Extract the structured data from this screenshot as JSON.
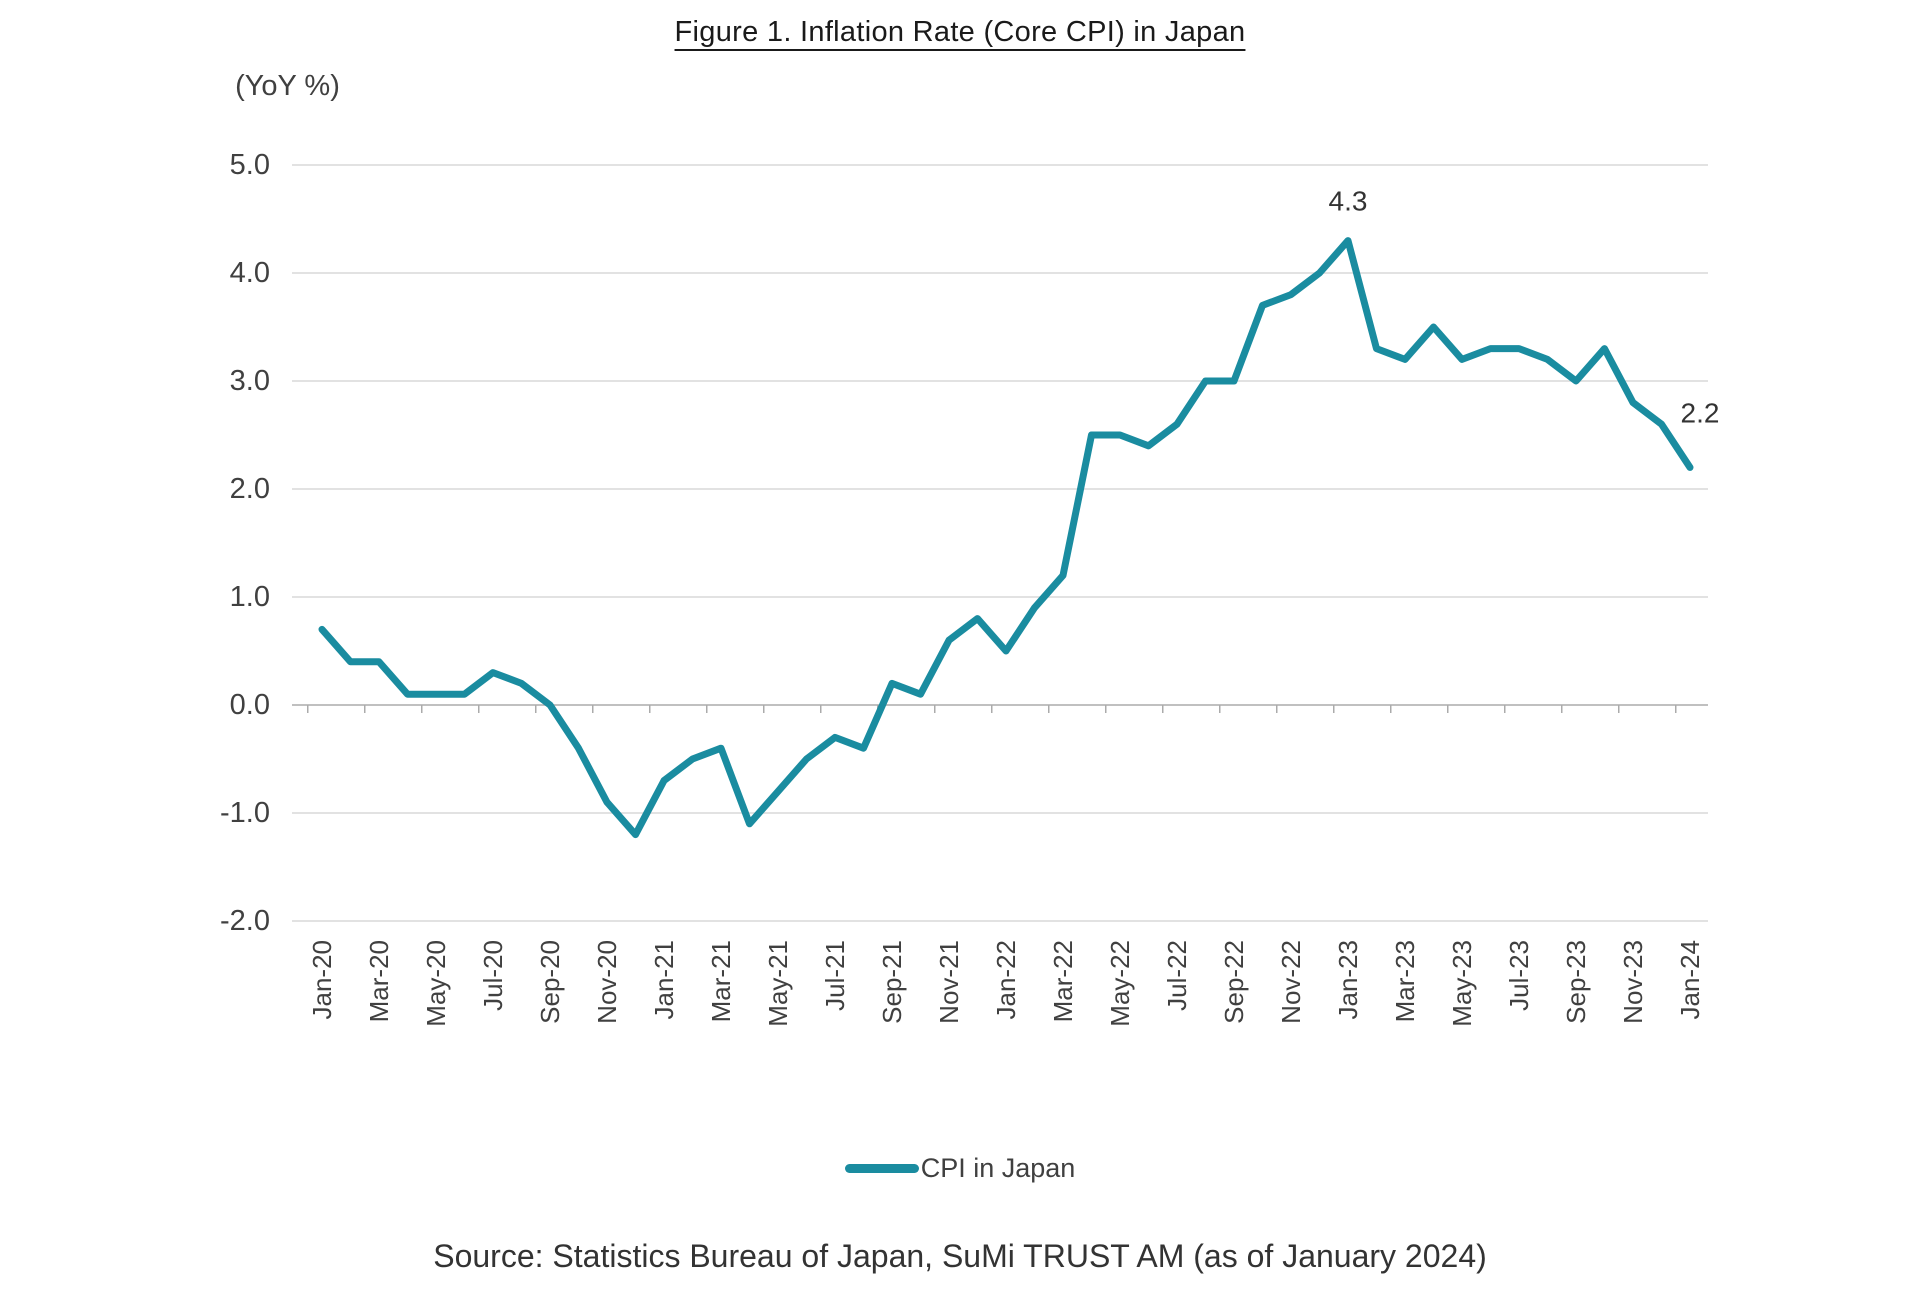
{
  "title": "Figure 1. Inflation Rate (Core CPI) in Japan",
  "y_axis_unit": "(YoY %)",
  "legend": {
    "label": "CPI in Japan"
  },
  "source": "Source: Statistics Bureau of Japan, SuMi TRUST AM (as of January 2024)",
  "colors": {
    "line": "#1A8CA0",
    "grid": "#D9D9D9",
    "axis": "#ABABAB",
    "tick_text": "#404040",
    "annotation_text": "#333333"
  },
  "chart_data": {
    "type": "line",
    "title": "Figure 1. Inflation Rate (Core CPI) in Japan",
    "ylabel": "(YoY %)",
    "ylim": [
      -2.0,
      5.0
    ],
    "ytick_step": 1.0,
    "yticks": [
      "5.0",
      "4.0",
      "3.0",
      "2.0",
      "1.0",
      "0.0",
      "-1.0",
      "-2.0"
    ],
    "grid": "horizontal",
    "legend_position": "bottom",
    "xlabel_every": 2,
    "categories": [
      "Jan-20",
      "Feb-20",
      "Mar-20",
      "Apr-20",
      "May-20",
      "Jun-20",
      "Jul-20",
      "Aug-20",
      "Sep-20",
      "Oct-20",
      "Nov-20",
      "Dec-20",
      "Jan-21",
      "Feb-21",
      "Mar-21",
      "Apr-21",
      "May-21",
      "Jun-21",
      "Jul-21",
      "Aug-21",
      "Sep-21",
      "Oct-21",
      "Nov-21",
      "Dec-21",
      "Jan-22",
      "Feb-22",
      "Mar-22",
      "Apr-22",
      "May-22",
      "Jun-22",
      "Jul-22",
      "Aug-22",
      "Sep-22",
      "Oct-22",
      "Nov-22",
      "Dec-22",
      "Jan-23",
      "Feb-23",
      "Mar-23",
      "Apr-23",
      "May-23",
      "Jun-23",
      "Jul-23",
      "Aug-23",
      "Sep-23",
      "Oct-23",
      "Nov-23",
      "Dec-23",
      "Jan-24"
    ],
    "series": [
      {
        "name": "CPI in Japan",
        "values": [
          0.7,
          0.4,
          0.4,
          0.1,
          0.1,
          0.1,
          0.3,
          0.2,
          0.0,
          -0.4,
          -0.9,
          -1.2,
          -0.7,
          -0.5,
          -0.4,
          -1.1,
          -0.8,
          -0.5,
          -0.3,
          -0.4,
          0.2,
          0.1,
          0.6,
          0.8,
          0.5,
          0.9,
          1.2,
          2.5,
          2.5,
          2.4,
          2.6,
          3.0,
          3.0,
          3.7,
          3.8,
          4.0,
          4.3,
          3.3,
          3.2,
          3.5,
          3.2,
          3.3,
          3.3,
          3.2,
          3.0,
          3.3,
          2.8,
          2.6,
          2.2
        ]
      }
    ],
    "annotations": [
      {
        "text": "4.3",
        "index": 36
      },
      {
        "text": "2.2",
        "index": 48
      }
    ]
  }
}
